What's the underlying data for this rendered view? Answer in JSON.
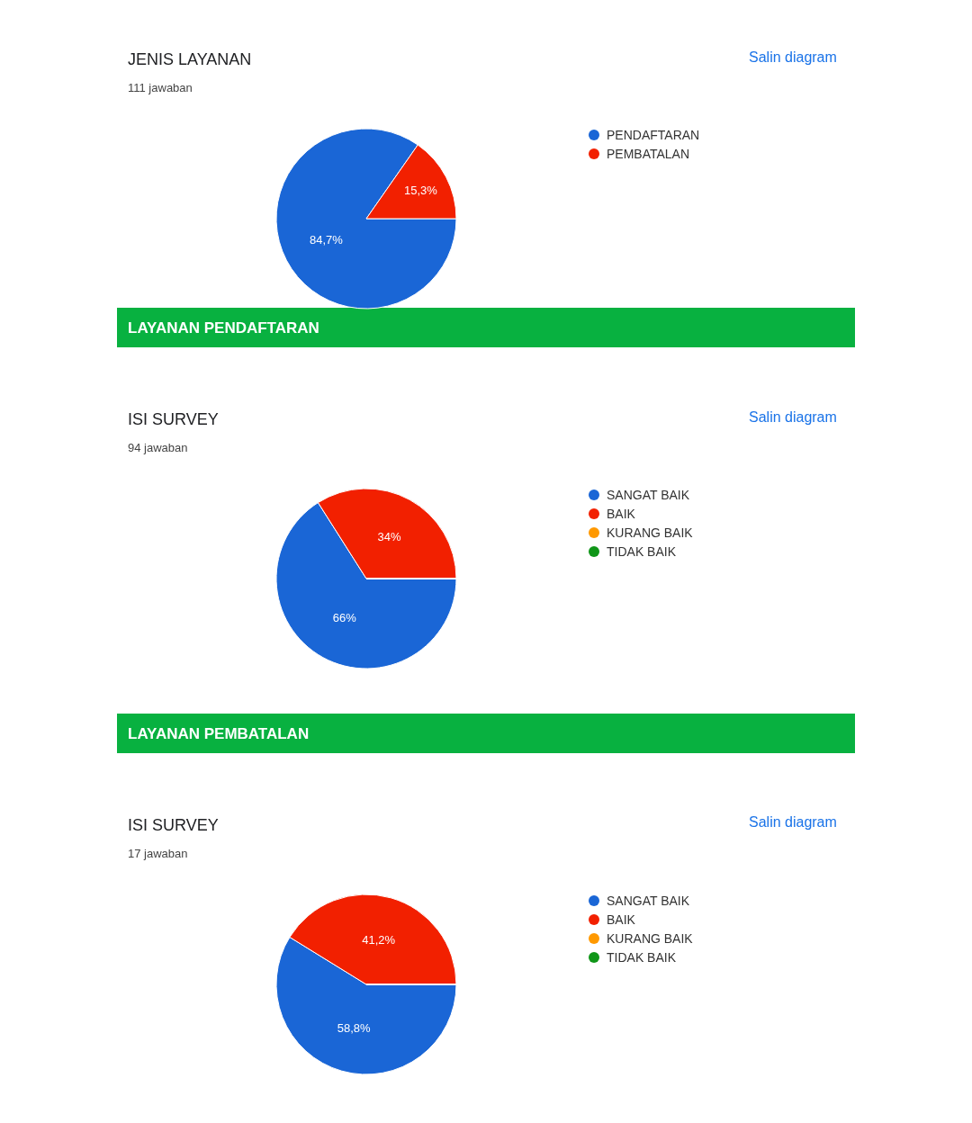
{
  "chart_data": [
    {
      "type": "pie",
      "title": "JENIS LAYANAN",
      "subtitle": "111 jawaban",
      "annotations": [
        "Salin diagram"
      ],
      "categories": [
        "PENDAFTARAN",
        "PEMBATALAN"
      ],
      "values": [
        84.7,
        15.3
      ],
      "value_labels": [
        "84,7%",
        "15,3%"
      ],
      "colors": [
        "#1a66d6",
        "#f22000"
      ],
      "legend": "right"
    },
    {
      "type": "pie",
      "title": "ISI SURVEY",
      "subtitle": "94 jawaban",
      "annotations": [
        "LAYANAN PENDAFTARAN",
        "Salin diagram"
      ],
      "categories": [
        "SANGAT BAIK",
        "BAIK",
        "KURANG BAIK",
        "TIDAK BAIK"
      ],
      "values": [
        66,
        34,
        0,
        0
      ],
      "value_labels": [
        "66%",
        "34%",
        null,
        null
      ],
      "colors": [
        "#1a66d6",
        "#f22000",
        "#ff9900",
        "#109618"
      ],
      "legend": "right"
    },
    {
      "type": "pie",
      "title": "ISI SURVEY",
      "subtitle": "17 jawaban",
      "annotations": [
        "LAYANAN PEMBATALAN",
        "Salin diagram"
      ],
      "categories": [
        "SANGAT BAIK",
        "BAIK",
        "KURANG BAIK",
        "TIDAK BAIK"
      ],
      "values": [
        58.8,
        41.2,
        0,
        0
      ],
      "value_labels": [
        "58,8%",
        "41,2%",
        null,
        null
      ],
      "colors": [
        "#1a66d6",
        "#f22000",
        "#ff9900",
        "#109618"
      ],
      "legend": "right"
    }
  ]
}
